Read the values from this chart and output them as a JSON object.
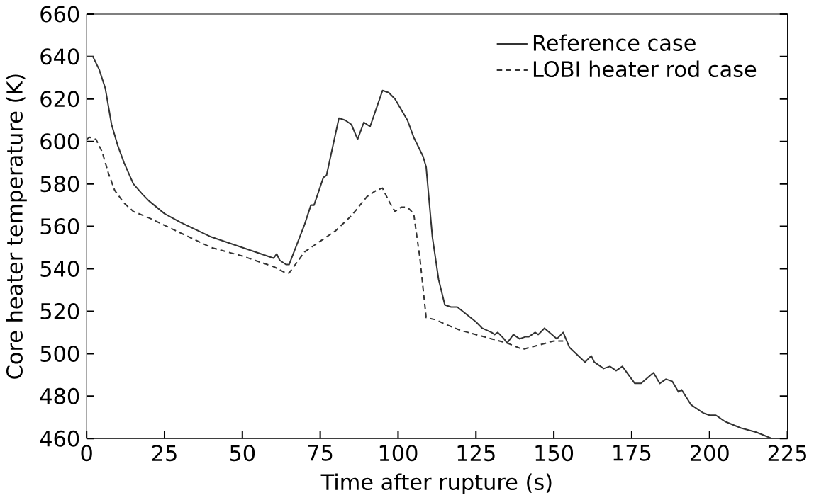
{
  "chart_data": {
    "type": "line",
    "xlabel": "Time after rupture (s)",
    "ylabel": "Core heater temperature (K)",
    "xlim": [
      0,
      225
    ],
    "xticks": [
      0,
      25,
      50,
      75,
      100,
      125,
      150,
      175,
      200,
      225
    ],
    "ylim": [
      460,
      660
    ],
    "yticks": [
      460,
      480,
      500,
      520,
      540,
      560,
      580,
      600,
      620,
      640,
      660
    ],
    "legend": "top right",
    "grid": false,
    "series": [
      {
        "name": "Reference case",
        "color": "#333333",
        "line_style": "solid",
        "x": [
          0,
          2,
          4,
          6,
          8,
          10,
          12,
          15,
          18,
          20,
          25,
          30,
          40,
          50,
          60,
          61,
          62,
          64,
          65,
          70,
          72,
          73,
          76,
          77,
          81,
          83,
          85,
          87,
          89,
          91,
          95,
          97,
          99,
          103,
          105,
          108,
          109,
          111,
          113,
          115,
          117,
          119,
          125,
          127,
          130,
          131,
          132,
          134,
          135,
          137,
          139,
          141,
          142,
          144,
          145,
          147,
          151,
          153,
          155,
          160,
          162,
          163,
          166,
          168,
          170,
          172,
          176,
          178,
          182,
          184,
          186,
          188,
          190,
          191,
          194,
          198,
          200,
          202,
          205,
          210,
          215,
          220
        ],
        "values": [
          640,
          640,
          634,
          625,
          608,
          598,
          590,
          580,
          575,
          572,
          566,
          562,
          555,
          550,
          545,
          547,
          544,
          542,
          542,
          561,
          570,
          570,
          583,
          584,
          611,
          610,
          608,
          601,
          609,
          607,
          624,
          623,
          620,
          610,
          602,
          593,
          588,
          555,
          535,
          523,
          522,
          522,
          515,
          512,
          510,
          509,
          510,
          507,
          505,
          509,
          507,
          508,
          508,
          510,
          509,
          512,
          507,
          510,
          503,
          496,
          499,
          496,
          493,
          494,
          492,
          494,
          486,
          486,
          491,
          486,
          488,
          487,
          482,
          483,
          476,
          472,
          471,
          471,
          468,
          465,
          463,
          460
        ]
      },
      {
        "name": "LOBI heater rod case",
        "color": "#333333",
        "line_style": "dashed",
        "x": [
          0,
          1,
          3,
          5,
          7,
          9,
          12,
          15,
          20,
          30,
          40,
          50,
          60,
          64,
          65,
          68,
          70,
          75,
          80,
          85,
          90,
          93,
          95,
          97,
          99,
          101,
          103,
          105,
          107,
          109,
          112,
          115,
          120,
          125,
          130,
          135,
          140,
          145,
          150,
          153
        ],
        "values": [
          601,
          602,
          601,
          595,
          585,
          577,
          571,
          567,
          564,
          557,
          550,
          546,
          541,
          538,
          538,
          544,
          548,
          553,
          558,
          565,
          574,
          577,
          578,
          572,
          567,
          569,
          569,
          566,
          545,
          517,
          516,
          514,
          511,
          509,
          507,
          505,
          502,
          504,
          506,
          506
        ]
      }
    ]
  }
}
